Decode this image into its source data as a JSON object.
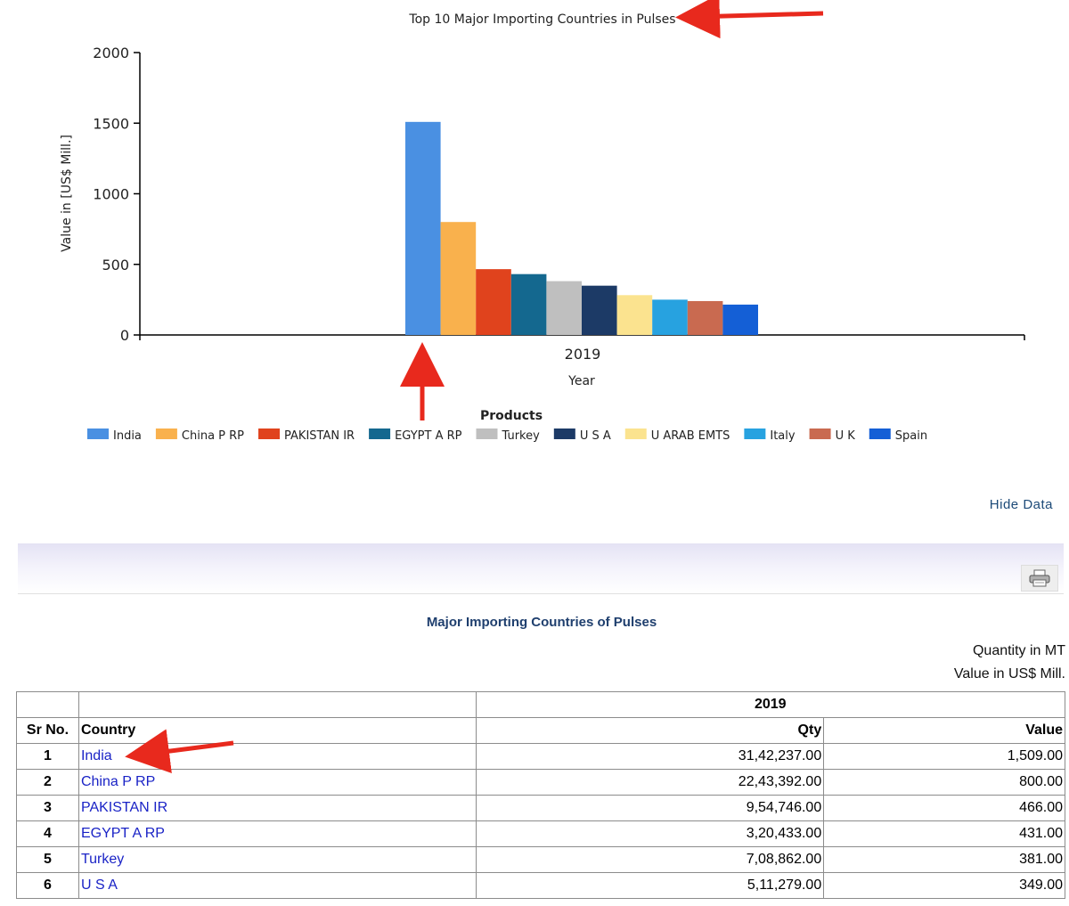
{
  "chart_data": {
    "type": "bar",
    "title": "Top 10 Major Importing Countries in Pulses",
    "xlabel": "Year",
    "ylabel": "Value in [US$ Mill.]",
    "categories": [
      "2019"
    ],
    "ylim": [
      0,
      2000
    ],
    "yticks": [
      "0",
      "500",
      "1000",
      "1500",
      "2000"
    ],
    "legend_title": "Products",
    "legend_position": "bottom",
    "series": [
      {
        "name": "India",
        "values": [
          1509
        ],
        "color": "#4a90e2"
      },
      {
        "name": "China P RP",
        "values": [
          800
        ],
        "color": "#f9b14d"
      },
      {
        "name": "PAKISTAN IR",
        "values": [
          466
        ],
        "color": "#e0431d"
      },
      {
        "name": "EGYPT A RP",
        "values": [
          431
        ],
        "color": "#14688f"
      },
      {
        "name": "Turkey",
        "values": [
          381
        ],
        "color": "#bfbfbf"
      },
      {
        "name": "U S A",
        "values": [
          349
        ],
        "color": "#1c3a66"
      },
      {
        "name": "U ARAB EMTS",
        "values": [
          282
        ],
        "color": "#fbe38f"
      },
      {
        "name": "Italy",
        "values": [
          250
        ],
        "color": "#27a2e0"
      },
      {
        "name": "U K",
        "values": [
          240
        ],
        "color": "#c96a50"
      },
      {
        "name": "Spain",
        "values": [
          215
        ],
        "color": "#145fd6"
      }
    ]
  },
  "controls": {
    "hide_data_label": "Hide Data",
    "print_icon": "printer-icon"
  },
  "report": {
    "title": "Major Importing Countries of Pulses",
    "unit_qty": "Quantity in MT",
    "unit_value": "Value in US$ Mill."
  },
  "table": {
    "year": "2019",
    "headers": {
      "sr": "Sr No.",
      "country": "Country",
      "qty": "Qty",
      "value": "Value"
    },
    "rows": [
      {
        "sr": "1",
        "country": "India",
        "qty": "31,42,237.00",
        "value": "1,509.00"
      },
      {
        "sr": "2",
        "country": "China P RP",
        "qty": "22,43,392.00",
        "value": "800.00"
      },
      {
        "sr": "3",
        "country": "PAKISTAN IR",
        "qty": "9,54,746.00",
        "value": "466.00"
      },
      {
        "sr": "4",
        "country": "EGYPT A RP",
        "qty": "3,20,433.00",
        "value": "431.00"
      },
      {
        "sr": "5",
        "country": "Turkey",
        "qty": "7,08,862.00",
        "value": "381.00"
      },
      {
        "sr": "6",
        "country": "U S A",
        "qty": "5,11,279.00",
        "value": "349.00"
      }
    ]
  },
  "annotation_color": "#e8291d"
}
